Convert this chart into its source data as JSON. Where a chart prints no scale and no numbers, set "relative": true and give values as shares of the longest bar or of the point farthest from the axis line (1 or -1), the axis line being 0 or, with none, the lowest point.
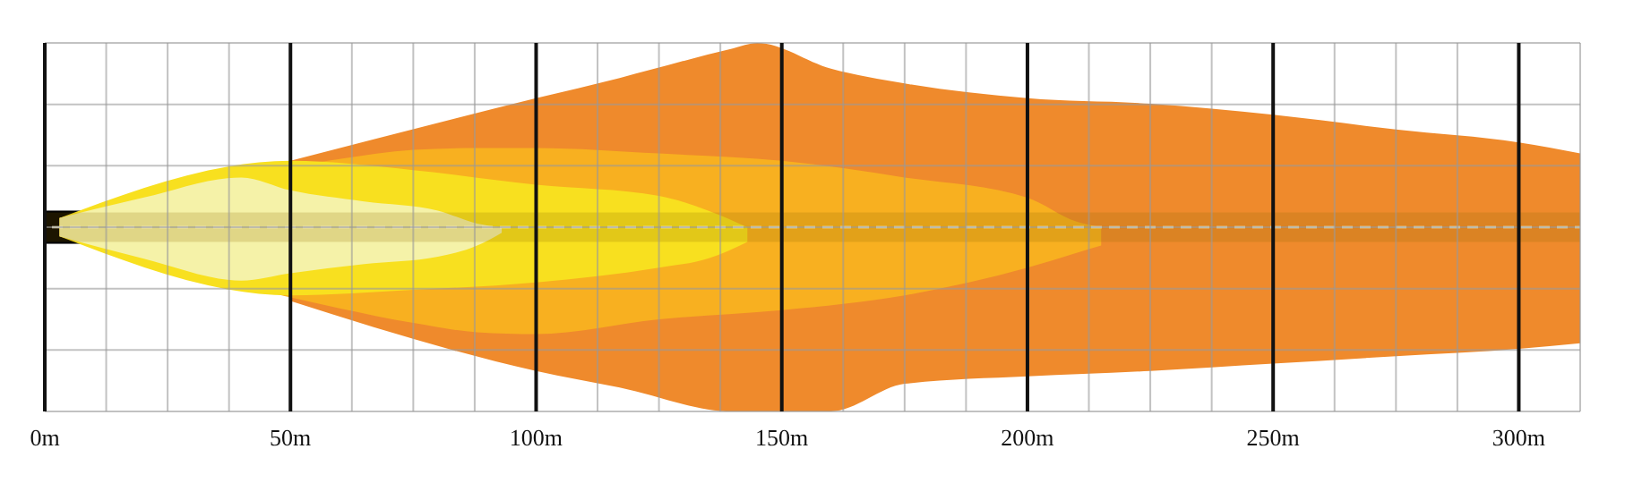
{
  "chart_data": {
    "type": "area",
    "relative": true,
    "xlim": [
      0,
      312.5
    ],
    "xticks": [
      {
        "value": 0,
        "label": "0m"
      },
      {
        "value": 12.5,
        "label": null
      },
      {
        "value": 25,
        "label": null
      },
      {
        "value": 37.5,
        "label": null
      },
      {
        "value": 50,
        "label": "50m"
      },
      {
        "value": 62.5,
        "label": null
      },
      {
        "value": 75,
        "label": null
      },
      {
        "value": 87.5,
        "label": null
      },
      {
        "value": 100,
        "label": "100m"
      },
      {
        "value": 112.5,
        "label": null
      },
      {
        "value": 125,
        "label": null
      },
      {
        "value": 137.5,
        "label": null
      },
      {
        "value": 150,
        "label": "150m"
      },
      {
        "value": 162.5,
        "label": null
      },
      {
        "value": 175,
        "label": null
      },
      {
        "value": 187.5,
        "label": null
      },
      {
        "value": 200,
        "label": "200m"
      },
      {
        "value": 212.5,
        "label": null
      },
      {
        "value": 225,
        "label": null
      },
      {
        "value": 237.5,
        "label": null
      },
      {
        "value": 250,
        "label": "250m"
      },
      {
        "value": 262.5,
        "label": null
      },
      {
        "value": 275,
        "label": null
      },
      {
        "value": 287.5,
        "label": null
      },
      {
        "value": 300,
        "label": "300m"
      }
    ],
    "grid": true,
    "series": [
      {
        "color": "#ef8a2c",
        "x": [
          50,
          100,
          117,
          140,
          145,
          160,
          175,
          200,
          225,
          250,
          275,
          300,
          312.5
        ],
        "values": [
          0.36,
          0.7,
          0.81,
          0.97,
          1,
          0.86,
          0.78,
          0.7,
          0.67,
          0.61,
          0.53,
          0.46,
          0.4
        ]
      },
      {
        "color": "#ef8a2c",
        "x": [
          50,
          100,
          117,
          140,
          145,
          160,
          175,
          200,
          225,
          250,
          275,
          300,
          312.5
        ],
        "values": [
          -0.4,
          -0.78,
          -0.87,
          -1,
          -1,
          -1,
          -0.85,
          -0.81,
          -0.78,
          -0.74,
          -0.7,
          -0.66,
          -0.63
        ]
      },
      {
        "color": "#f8b020",
        "x": [
          3,
          60,
          75,
          88,
          100,
          125,
          150,
          175,
          200,
          210,
          215
        ],
        "values": [
          0.05,
          0.37,
          0.42,
          0.43,
          0.43,
          0.4,
          0.36,
          0.27,
          0.16,
          0.03,
          0
        ]
      },
      {
        "color": "#f8b020",
        "x": [
          3,
          60,
          75,
          88,
          100,
          125,
          150,
          175,
          200,
          210,
          215
        ],
        "values": [
          -0.05,
          -0.44,
          -0.52,
          -0.57,
          -0.58,
          -0.5,
          -0.45,
          -0.37,
          -0.22,
          -0.14,
          -0.1
        ]
      },
      {
        "color": "#f8e01f",
        "x": [
          3,
          50,
          75,
          100,
          125,
          135,
          143
        ],
        "values": [
          0.05,
          0.36,
          0.31,
          0.23,
          0.17,
          0.09,
          0
        ]
      },
      {
        "color": "#f8e01f",
        "x": [
          3,
          50,
          75,
          100,
          125,
          135,
          143
        ],
        "values": [
          -0.05,
          -0.37,
          -0.34,
          -0.3,
          -0.22,
          -0.17,
          -0.08
        ]
      },
      {
        "color": "#f5f2a8",
        "x": [
          3,
          20,
          40,
          50,
          65,
          80,
          88,
          93
        ],
        "values": [
          0.05,
          0.16,
          0.27,
          0.2,
          0.14,
          0.09,
          0.02,
          0
        ]
      },
      {
        "color": "#f5f2a8",
        "x": [
          3,
          20,
          40,
          50,
          65,
          80,
          88,
          93
        ],
        "values": [
          -0.05,
          -0.17,
          -0.29,
          -0.25,
          -0.2,
          -0.16,
          -0.1,
          -0.03
        ]
      }
    ],
    "ref_lines": [
      {
        "axis": "y",
        "value": 0,
        "color": "#f5f0c8",
        "line_style": "dashed"
      }
    ]
  }
}
